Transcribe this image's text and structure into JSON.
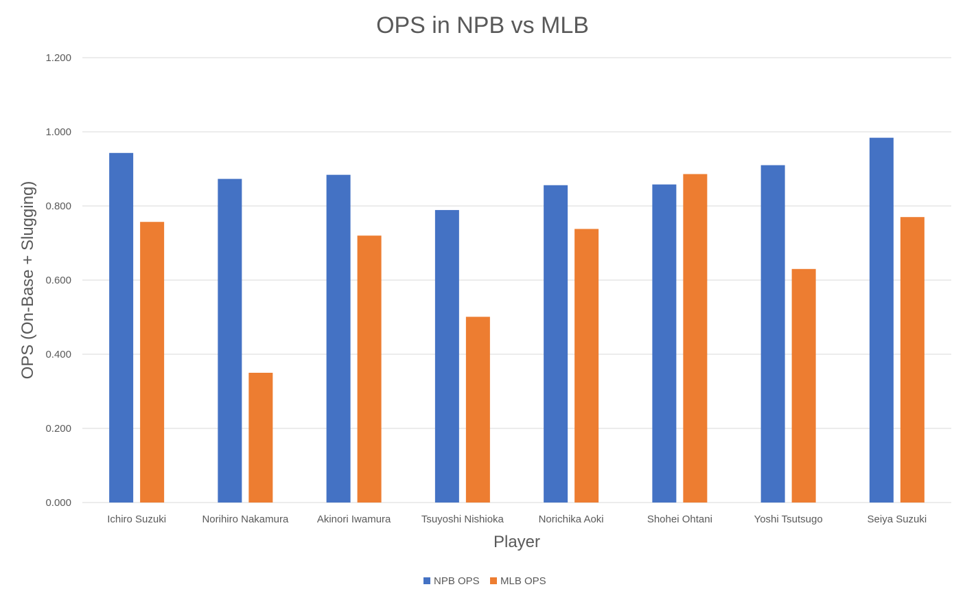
{
  "chart_data": {
    "type": "bar",
    "title": "OPS in NPB vs MLB",
    "xlabel": "Player",
    "ylabel": "OPS (On-Base + Slugging)",
    "ylim": [
      0,
      1.2
    ],
    "yticks": [
      "0.000",
      "0.200",
      "0.400",
      "0.600",
      "0.800",
      "1.000",
      "1.200"
    ],
    "categories": [
      "Ichiro Suzuki",
      "Norihiro Nakamura",
      "Akinori Iwamura",
      "Tsuyoshi Nishioka",
      "Norichika Aoki",
      "Shohei Ohtani",
      "Yoshi Tsutsugo",
      "Seiya Suzuki"
    ],
    "series": [
      {
        "name": "NPB OPS",
        "color": "#4472c4",
        "values": [
          0.943,
          0.873,
          0.884,
          0.789,
          0.856,
          0.858,
          0.91,
          0.984
        ]
      },
      {
        "name": "MLB OPS",
        "color": "#ed7d31",
        "values": [
          0.757,
          0.35,
          0.72,
          0.501,
          0.738,
          0.886,
          0.63,
          0.77
        ]
      }
    ],
    "grid": true,
    "legend_position": "bottom"
  }
}
